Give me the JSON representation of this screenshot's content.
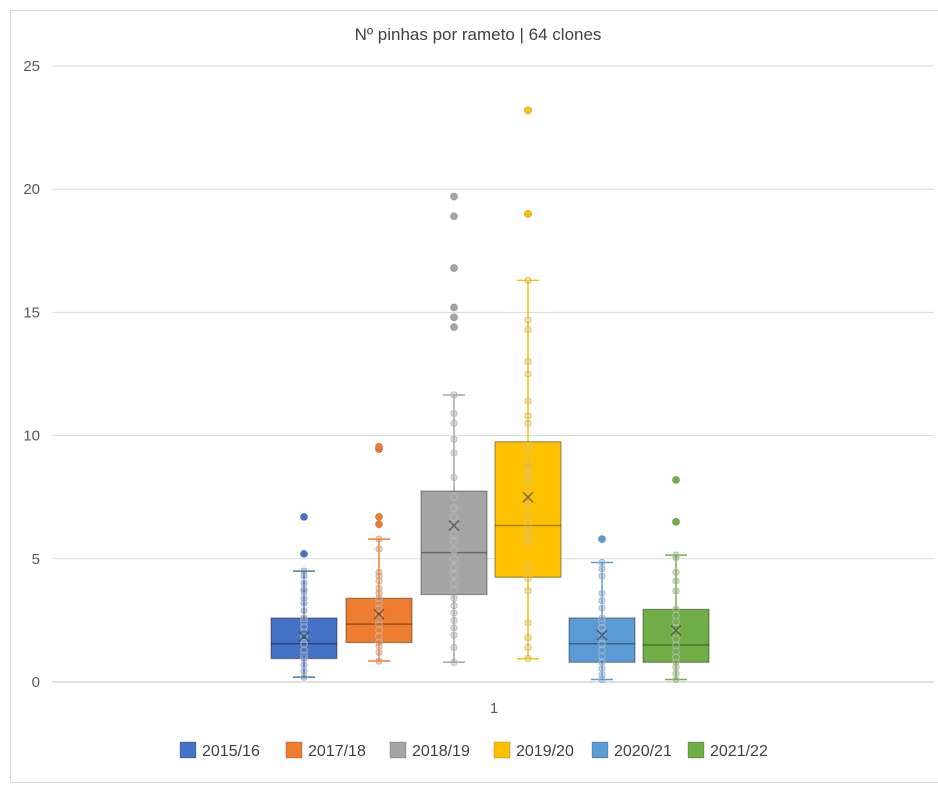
{
  "chart_data": {
    "type": "box",
    "title": "Nº pinhas por rameto | 64 clones",
    "xlabel": "",
    "ylabel": "",
    "x_category": "1",
    "ylim": [
      0,
      25
    ],
    "yticks": [
      0,
      5,
      10,
      15,
      20,
      25
    ],
    "grid": true,
    "legend_position": "bottom",
    "series": [
      {
        "name": "2015/16",
        "color": "#4472C4",
        "whisker_low": 0.2,
        "q1": 0.95,
        "median": 1.55,
        "q3": 2.6,
        "whisker_high": 4.5,
        "mean": 1.85,
        "outliers": [
          5.2,
          6.7
        ],
        "points": [
          0.2,
          0.45,
          0.7,
          0.95,
          1.1,
          1.3,
          1.55,
          1.75,
          1.85,
          2.05,
          2.25,
          2.45,
          2.6,
          2.9,
          3.2,
          3.4,
          3.65,
          3.75,
          4.0,
          4.3,
          4.5
        ]
      },
      {
        "name": "2017/18",
        "color": "#ED7D31",
        "whisker_low": 0.85,
        "q1": 1.6,
        "median": 2.35,
        "q3": 3.4,
        "whisker_high": 5.8,
        "mean": 2.75,
        "outliers": [
          6.4,
          6.7,
          9.45,
          9.55
        ],
        "points": [
          0.85,
          1.2,
          1.45,
          1.6,
          1.85,
          2.1,
          2.35,
          2.55,
          2.75,
          3.0,
          3.2,
          3.4,
          3.6,
          3.8,
          4.1,
          4.3,
          4.45,
          5.4,
          5.8
        ]
      },
      {
        "name": "2018/19",
        "color": "#A5A5A5",
        "whisker_low": 0.8,
        "q1": 3.55,
        "median": 5.25,
        "q3": 7.75,
        "whisker_high": 11.65,
        "mean": 6.35,
        "outliers": [
          14.4,
          14.8,
          15.2,
          16.8,
          18.9,
          19.7
        ],
        "points": [
          0.8,
          1.4,
          1.9,
          2.2,
          2.5,
          2.8,
          3.1,
          3.4,
          3.75,
          4.0,
          4.35,
          4.65,
          5.0,
          5.35,
          5.7,
          6.0,
          6.35,
          6.7,
          7.05,
          7.5,
          8.3,
          9.3,
          9.85,
          10.5,
          10.9,
          11.65
        ]
      },
      {
        "name": "2019/20",
        "color": "#FFC000",
        "whisker_low": 0.95,
        "q1": 4.25,
        "median": 6.35,
        "q3": 9.75,
        "whisker_high": 16.3,
        "mean": 7.5,
        "outliers": [
          19.0,
          23.2
        ],
        "points": [
          0.95,
          1.4,
          1.8,
          2.4,
          3.7,
          4.2,
          4.7,
          5.7,
          6.0,
          6.35,
          6.8,
          7.3,
          7.6,
          8.1,
          8.4,
          8.7,
          9.0,
          9.5,
          10.5,
          10.8,
          11.4,
          12.5,
          13.0,
          14.3,
          14.7,
          16.3
        ]
      },
      {
        "name": "2020/21",
        "color": "#5B9BD5",
        "whisker_low": 0.1,
        "q1": 0.8,
        "median": 1.55,
        "q3": 2.6,
        "whisker_high": 4.85,
        "mean": 1.9,
        "outliers": [
          5.8
        ],
        "points": [
          0.1,
          0.3,
          0.55,
          0.8,
          1.05,
          1.3,
          1.55,
          1.8,
          2.0,
          2.2,
          2.45,
          2.6,
          3.0,
          3.3,
          3.6,
          4.3,
          4.6,
          4.85
        ]
      },
      {
        "name": "2021/22",
        "color": "#70AD47",
        "whisker_low": 0.1,
        "q1": 0.8,
        "median": 1.5,
        "q3": 2.95,
        "whisker_high": 5.15,
        "mean": 2.1,
        "outliers": [
          6.5,
          8.2
        ],
        "points": [
          0.1,
          0.35,
          0.6,
          0.8,
          1.0,
          1.25,
          1.5,
          1.75,
          2.0,
          2.2,
          2.45,
          2.7,
          2.95,
          3.7,
          4.1,
          4.45,
          5.05,
          5.15
        ]
      }
    ]
  }
}
